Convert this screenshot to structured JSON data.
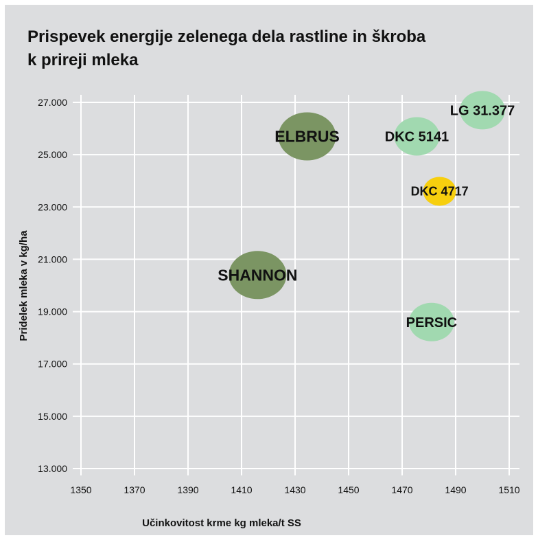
{
  "chart_data": {
    "type": "scatter",
    "title": "Prispevek energije zelenega dela rastline in škroba\nk prireji mleka",
    "xlabel": "Učinkovitost krme kg mleka/t SS",
    "ylabel": "Pridelek mleka v kg/ha",
    "xlim": [
      1350,
      1510
    ],
    "ylim": [
      13000,
      27000
    ],
    "x_ticks": [
      "1350",
      "1370",
      "1390",
      "1410",
      "1430",
      "1450",
      "1470",
      "1490",
      "1510"
    ],
    "y_ticks": [
      "13.000",
      "15.000",
      "17.000",
      "19.000",
      "21.000",
      "23.000",
      "25.000",
      "27.000"
    ],
    "grid": true,
    "points": [
      {
        "label": "ELBRUS",
        "x": 1434.5,
        "y": 25700,
        "color": "#7b9563",
        "size": "large"
      },
      {
        "label": "SHANNON",
        "x": 1416,
        "y": 20400,
        "color": "#7b9563",
        "size": "large"
      },
      {
        "label": "DKC 5141",
        "x": 1475.5,
        "y": 25700,
        "color": "#a1d9b0",
        "size": "medium"
      },
      {
        "label": "LG 31.377",
        "x": 1500,
        "y": 26700,
        "color": "#a1d9b0",
        "size": "medium"
      },
      {
        "label": "DKC 4717",
        "x": 1484,
        "y": 23600,
        "color": "#f7cf0e",
        "size": "small"
      },
      {
        "label": "PERSIC",
        "x": 1481,
        "y": 18600,
        "color": "#a1d9b0",
        "size": "medium"
      }
    ]
  }
}
